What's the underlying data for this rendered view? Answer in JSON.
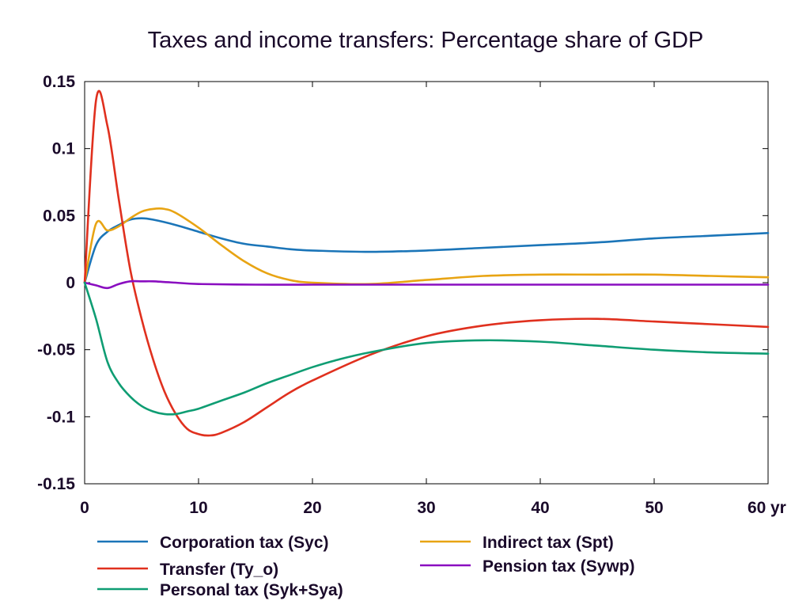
{
  "chart_data": {
    "type": "line",
    "title": "Taxes and income transfers: Percentage share of GDP",
    "xlabel": "",
    "ylabel": "",
    "x_unit_label": "yr",
    "xlim": [
      0,
      60
    ],
    "ylim": [
      -0.15,
      0.15
    ],
    "x_ticks": [
      0,
      10,
      20,
      30,
      40,
      50,
      60
    ],
    "x_tick_labels": [
      "0",
      "10",
      "20",
      "30",
      "40",
      "50",
      "60"
    ],
    "y_ticks": [
      0.15,
      0.1,
      0.05,
      0,
      -0.05,
      -0.1,
      -0.15
    ],
    "y_tick_labels": [
      "0.15",
      "0.1",
      "0.05",
      "0",
      "-0.05",
      "-0.1",
      "-0.15"
    ],
    "grid": false,
    "legend_position": "bottom",
    "series": [
      {
        "name": "Corporation tax (Syc)",
        "color": "#1b75b8",
        "x": [
          0,
          1,
          2,
          3,
          4,
          5,
          6,
          8,
          10,
          12,
          14,
          16,
          18,
          20,
          25,
          30,
          35,
          40,
          45,
          50,
          55,
          60
        ],
        "y": [
          0,
          0.028,
          0.038,
          0.043,
          0.047,
          0.048,
          0.047,
          0.043,
          0.038,
          0.033,
          0.029,
          0.027,
          0.025,
          0.024,
          0.023,
          0.024,
          0.026,
          0.028,
          0.03,
          0.033,
          0.035,
          0.037
        ]
      },
      {
        "name": "Indirect tax (Spt)",
        "color": "#e8a413",
        "x": [
          0,
          1,
          2,
          3,
          4,
          5,
          6,
          7,
          8,
          10,
          12,
          14,
          16,
          18,
          20,
          25,
          30,
          35,
          40,
          45,
          50,
          55,
          60
        ],
        "y": [
          0,
          0.044,
          0.039,
          0.042,
          0.048,
          0.053,
          0.055,
          0.055,
          0.052,
          0.041,
          0.028,
          0.016,
          0.007,
          0.002,
          0.0,
          -0.001,
          0.002,
          0.005,
          0.006,
          0.006,
          0.006,
          0.005,
          0.004
        ]
      },
      {
        "name": "Transfer (Ty_o)",
        "color": "#e0301e",
        "x": [
          0,
          1,
          2,
          3,
          4,
          5,
          6,
          7,
          8,
          9,
          10,
          11,
          12,
          14,
          16,
          18,
          20,
          25,
          30,
          35,
          40,
          45,
          50,
          55,
          60
        ],
        "y": [
          0,
          0.136,
          0.117,
          0.062,
          0.01,
          -0.027,
          -0.057,
          -0.081,
          -0.098,
          -0.109,
          -0.113,
          -0.114,
          -0.112,
          -0.104,
          -0.093,
          -0.082,
          -0.073,
          -0.054,
          -0.04,
          -0.032,
          -0.028,
          -0.027,
          -0.029,
          -0.031,
          -0.033
        ]
      },
      {
        "name": "Pension tax (Sywp)",
        "color": "#8a0ec0",
        "x": [
          0,
          1,
          2,
          3,
          4,
          5,
          6,
          7,
          8,
          10,
          15,
          20,
          30,
          40,
          50,
          60
        ],
        "y": [
          0,
          -0.002,
          -0.004,
          -0.001,
          0.001,
          0.001,
          0.001,
          0.0005,
          0.0,
          -0.001,
          -0.0015,
          -0.0015,
          -0.0015,
          -0.0015,
          -0.0015,
          -0.0015
        ]
      },
      {
        "name": "Personal tax (Syk+Sya)",
        "color": "#0f9d73",
        "x": [
          0,
          1,
          2,
          3,
          4,
          5,
          6,
          7,
          8,
          9,
          10,
          12,
          14,
          16,
          18,
          20,
          22,
          25,
          30,
          35,
          40,
          45,
          50,
          55,
          60
        ],
        "y": [
          0,
          -0.027,
          -0.059,
          -0.075,
          -0.085,
          -0.092,
          -0.096,
          -0.098,
          -0.098,
          -0.096,
          -0.094,
          -0.088,
          -0.082,
          -0.075,
          -0.069,
          -0.063,
          -0.058,
          -0.052,
          -0.045,
          -0.043,
          -0.044,
          -0.047,
          -0.05,
          -0.052,
          -0.053
        ]
      }
    ],
    "legend_items": [
      {
        "label": "Corporation tax (Syc)",
        "color": "#1b75b8"
      },
      {
        "label": "Indirect tax (Spt)",
        "color": "#e8a413"
      },
      {
        "label": "Transfer (Ty_o)",
        "color": "#e0301e"
      },
      {
        "label": "Pension tax (Sywp)",
        "color": "#8a0ec0"
      },
      {
        "label": "Personal tax (Syk+Sya)",
        "color": "#0f9d73"
      }
    ]
  }
}
